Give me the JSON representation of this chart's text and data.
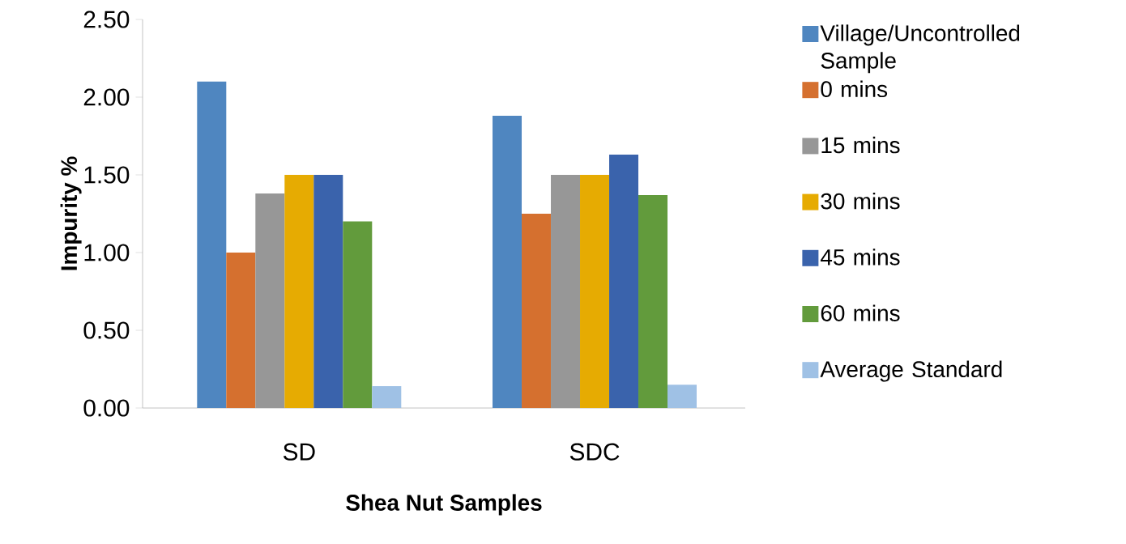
{
  "chart_data": {
    "type": "bar",
    "xlabel": "Shea Nut Samples",
    "ylabel": "Impurity %",
    "categories": [
      "SD",
      "SDC"
    ],
    "series": [
      {
        "name": "Village/Uncontrolled Sample",
        "color": "#4f86c0",
        "values": [
          2.1,
          1.88
        ]
      },
      {
        "name": "0 mins",
        "color": "#d5702f",
        "values": [
          1.0,
          1.25
        ]
      },
      {
        "name": "15 mins",
        "color": "#979797",
        "values": [
          1.38,
          1.5
        ]
      },
      {
        "name": "30 mins",
        "color": "#e6ab02",
        "values": [
          1.5,
          1.5
        ]
      },
      {
        "name": "45 mins",
        "color": "#3a63ac",
        "values": [
          1.5,
          1.63
        ]
      },
      {
        "name": "60 mins",
        "color": "#629b3c",
        "values": [
          1.2,
          1.37
        ]
      },
      {
        "name": "Average Standard",
        "color": "#9fc1e5",
        "values": [
          0.14,
          0.15
        ]
      }
    ],
    "ylim": [
      0,
      2.5
    ],
    "yticks": [
      {
        "value": 0,
        "label": "0.00"
      },
      {
        "value": 0.5,
        "label": "0.50"
      },
      {
        "value": 1,
        "label": "1.00"
      },
      {
        "value": 1.5,
        "label": "1.50"
      },
      {
        "value": 2,
        "label": "2.00"
      },
      {
        "value": 2.5,
        "label": "2.50"
      }
    ],
    "legend": "right"
  }
}
